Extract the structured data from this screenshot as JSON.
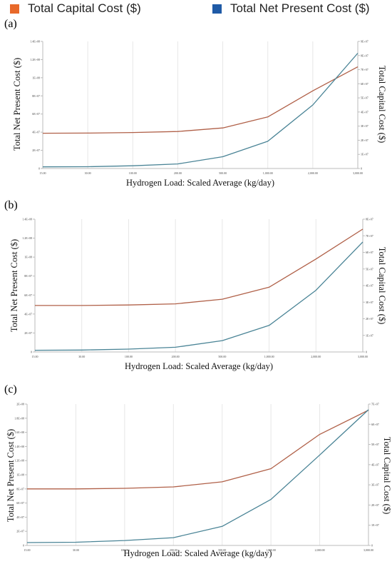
{
  "legend": {
    "items": [
      {
        "label": "Total Capital Cost ($)",
        "color": "#e8692a"
      },
      {
        "label": "Total Net Present Cost ($)",
        "color": "#1f5aa6"
      }
    ]
  },
  "colors": {
    "capital_line": "#b06048",
    "npc_line": "#4a8496",
    "grid": "#e6e6e6",
    "axis": "#bbbbbb"
  },
  "chart_data": [
    {
      "panel_label": "(a)",
      "type": "line",
      "categories": [
        "15.00",
        "30.00",
        "100.00",
        "200.00",
        "500.00",
        "1,000.00",
        "2,000.00",
        "3,000.00"
      ],
      "xlabel": "Hydrogen Load: Scaled Average (kg/day)",
      "ylabel_left": "Total Net Present Cost ($)",
      "ylabel_right": "Total Capital Cost ($)",
      "ylim_left": [
        0,
        140000000
      ],
      "ylim_right": [
        0,
        90000000
      ],
      "yticks_left": [
        "0",
        "2E+07",
        "4E+07",
        "6E+07",
        "8E+07",
        "1E+08",
        "1.2E+08",
        "1.4E+08"
      ],
      "yticks_left_values": [
        0,
        20000000,
        40000000,
        60000000,
        80000000,
        100000000,
        120000000,
        140000000
      ],
      "yticks_right": [
        "0",
        "1E+07",
        "2E+07",
        "3E+07",
        "4E+07",
        "5E+07",
        "6E+07",
        "7E+07",
        "8E+07",
        "9E+07"
      ],
      "yticks_right_values": [
        0,
        10000000,
        20000000,
        30000000,
        40000000,
        50000000,
        60000000,
        70000000,
        80000000,
        90000000
      ],
      "grid": true,
      "series": [
        {
          "name": "Total Capital Cost ($)",
          "axis": "right",
          "values": [
            25000000,
            25100000,
            25500000,
            26200000,
            28700000,
            36500000,
            55000000,
            72000000
          ]
        },
        {
          "name": "Total Net Present Cost ($)",
          "axis": "left",
          "values": [
            1800000,
            2000000,
            3000000,
            5000000,
            13000000,
            30000000,
            70000000,
            127000000
          ]
        }
      ]
    },
    {
      "panel_label": "(b)",
      "type": "line",
      "categories": [
        "15.00",
        "30.00",
        "100.00",
        "200.00",
        "500.00",
        "1,000.00",
        "2,000.00",
        "3,000.00"
      ],
      "xlabel": "Hydrogen Load: Scaled Average (kg/day)",
      "ylabel_left": "Total Net Present Cost ($)",
      "ylabel_right": "Total Capital Cost ($)",
      "ylim_left": [
        0,
        140000000
      ],
      "ylim_right": [
        0,
        80000000
      ],
      "yticks_left": [
        "0",
        "2E+07",
        "4E+07",
        "6E+07",
        "8E+07",
        "1E+08",
        "1.2E+08",
        "1.4E+08"
      ],
      "yticks_left_values": [
        0,
        20000000,
        40000000,
        60000000,
        80000000,
        100000000,
        120000000,
        140000000
      ],
      "yticks_right": [
        "0",
        "1E+07",
        "2E+07",
        "3E+07",
        "4E+07",
        "5E+07",
        "6E+07",
        "7E+07",
        "8E+07"
      ],
      "yticks_right_values": [
        0,
        10000000,
        20000000,
        30000000,
        40000000,
        50000000,
        60000000,
        70000000,
        80000000
      ],
      "grid": true,
      "series": [
        {
          "name": "Total Capital Cost ($)",
          "axis": "right",
          "values": [
            28000000,
            28000000,
            28300000,
            29000000,
            31800000,
            39000000,
            56000000,
            74000000
          ]
        },
        {
          "name": "Total Net Present Cost ($)",
          "axis": "left",
          "values": [
            1800000,
            2000000,
            3000000,
            5000000,
            12000000,
            28000000,
            65000000,
            116000000
          ]
        }
      ]
    },
    {
      "panel_label": "(c)",
      "type": "line",
      "categories": [
        "15.00",
        "30.00",
        "100.00",
        "200.00",
        "500.00",
        "1,000.00",
        "2,000.00",
        "3,000.00"
      ],
      "xlabel": "Hydrogen Load: Scaled Average (kg/day)",
      "ylabel_left": "Total Net Present Cost ($)",
      "ylabel_right": "Total Capital Cost ($)",
      "ylim_left": [
        0,
        200000000
      ],
      "ylim_right": [
        0,
        70000000
      ],
      "yticks_left": [
        "0",
        "2E+07",
        "4E+07",
        "6E+07",
        "8E+07",
        "1E+08",
        "1.2E+08",
        "1.4E+08",
        "1.6E+08",
        "1.8E+08",
        "2E+08"
      ],
      "yticks_left_values": [
        0,
        20000000,
        40000000,
        60000000,
        80000000,
        100000000,
        120000000,
        140000000,
        160000000,
        180000000,
        200000000
      ],
      "yticks_right": [
        "0",
        "1E+07",
        "2E+07",
        "3E+07",
        "4E+07",
        "5E+07",
        "6E+07",
        "7E+07"
      ],
      "yticks_right_values": [
        0,
        10000000,
        20000000,
        30000000,
        40000000,
        50000000,
        60000000,
        70000000
      ],
      "grid": true,
      "series": [
        {
          "name": "Total Capital Cost ($)",
          "axis": "right",
          "values": [
            28000000,
            28000000,
            28300000,
            29000000,
            31500000,
            38000000,
            55000000,
            67000000
          ]
        },
        {
          "name": "Total Net Present Cost ($)",
          "axis": "left",
          "values": [
            4000000,
            4500000,
            7000000,
            11000000,
            27000000,
            65000000,
            128000000,
            192000000
          ]
        }
      ]
    }
  ]
}
